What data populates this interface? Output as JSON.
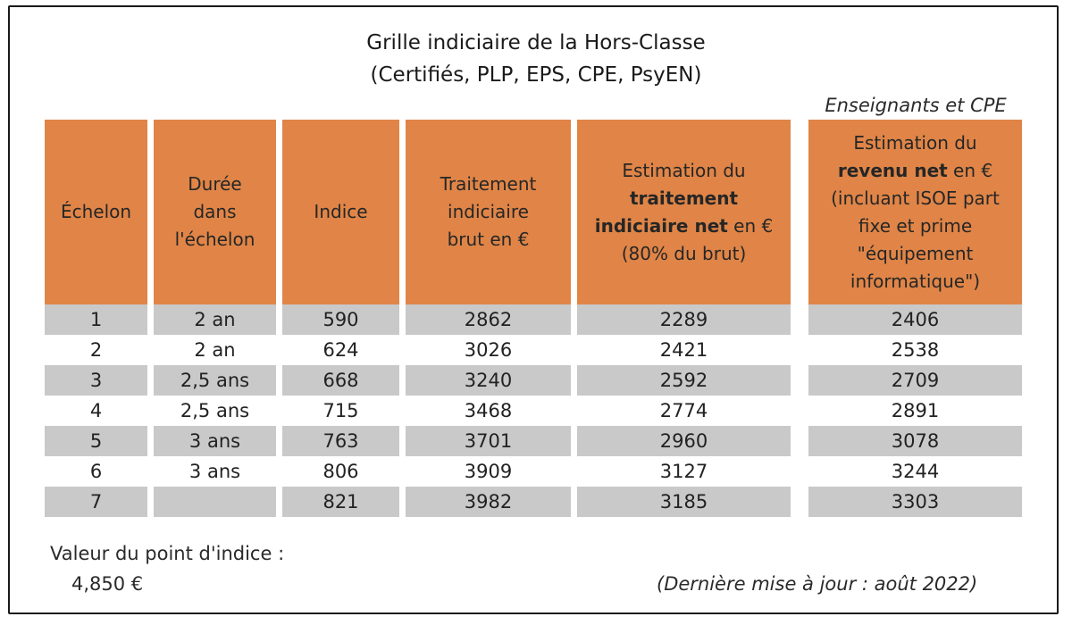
{
  "title_line1": "Grille indiciaire de la Hors-Classe",
  "title_line2": "(Certifiés, PLP, EPS, CPE, PsyEN)",
  "role_label": "Enseignants et CPE",
  "headers": {
    "echelon": "Échelon",
    "duree": [
      "Durée",
      "dans",
      "l'échelon"
    ],
    "indice": "Indice",
    "brut": [
      "Traitement",
      "indiciaire",
      "brut en €"
    ],
    "net_line1": "Estimation du",
    "net_bold1": "traitement",
    "net_bold2": "indiciaire net",
    "net_suffix2": " en €",
    "net_line4": "(80% du brut)",
    "revenu_line1": "Estimation du",
    "revenu_bold": "revenu net",
    "revenu_suffix": " en €",
    "revenu_lines": [
      "(incluant ISOE part",
      "fixe et prime",
      "\"équipement",
      "informatique\")"
    ]
  },
  "rows": [
    {
      "echelon": "1",
      "duree": "2 an",
      "indice": "590",
      "brut": "2862",
      "net": "2289",
      "revenu": "2406"
    },
    {
      "echelon": "2",
      "duree": "2 an",
      "indice": "624",
      "brut": "3026",
      "net": "2421",
      "revenu": "2538"
    },
    {
      "echelon": "3",
      "duree": "2,5 ans",
      "indice": "668",
      "brut": "3240",
      "net": "2592",
      "revenu": "2709"
    },
    {
      "echelon": "4",
      "duree": "2,5 ans",
      "indice": "715",
      "brut": "3468",
      "net": "2774",
      "revenu": "2891"
    },
    {
      "echelon": "5",
      "duree": "3 ans",
      "indice": "763",
      "brut": "3701",
      "net": "2960",
      "revenu": "3078"
    },
    {
      "echelon": "6",
      "duree": "3 ans",
      "indice": "806",
      "brut": "3909",
      "net": "3127",
      "revenu": "3244"
    },
    {
      "echelon": "7",
      "duree": "",
      "indice": "821",
      "brut": "3982",
      "net": "3185",
      "revenu": "3303"
    }
  ],
  "footer": {
    "point_label": "Valeur du point d'indice :",
    "point_value": "4,850 €",
    "update": "(Dernière mise à jour : août 2022)"
  },
  "colors": {
    "header_bg": "#e08547",
    "stripe": "#c9c9c9"
  }
}
